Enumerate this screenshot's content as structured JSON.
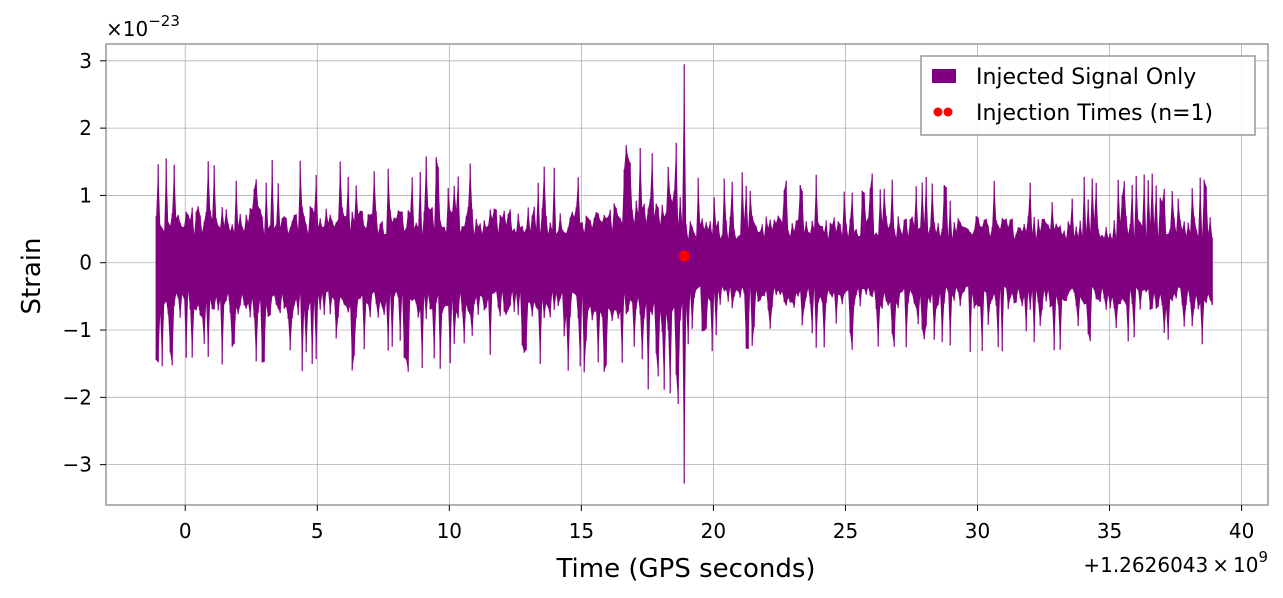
{
  "chart_data": {
    "type": "line",
    "xlabel": "Time (GPS seconds)",
    "ylabel": "Strain",
    "x_offset_label": "+1.2626043 × 10",
    "x_offset_exponent": "9",
    "y_multiplier_label": "×10",
    "y_multiplier_exponent": "−23",
    "xlim": [
      -3,
      41
    ],
    "ylim": [
      -3.6,
      3.25
    ],
    "x_ticks": [
      0,
      5,
      10,
      15,
      20,
      25,
      30,
      35,
      40
    ],
    "x_tick_labels": [
      "0",
      "5",
      "10",
      "15",
      "20",
      "25",
      "30",
      "35",
      "40"
    ],
    "y_ticks": [
      -3,
      -2,
      -1,
      0,
      1,
      2,
      3
    ],
    "y_tick_labels": [
      "−3",
      "−2",
      "−1",
      "0",
      "1",
      "2",
      "3"
    ],
    "grid": true,
    "legend_position": "top-right",
    "series": [
      {
        "name": "Injected Signal Only",
        "kind": "line",
        "color": "#800080",
        "x_range": [
          -1.1,
          38.9
        ],
        "envelope_peak_pre_injection": 1.2,
        "envelope_peak_post_injection": 1.0,
        "injection_peak_time": 18.9,
        "max_value": 2.95,
        "min_value": -3.28
      },
      {
        "name": "Injection Times (n=1)",
        "kind": "scatter",
        "color": "#ff0000",
        "x": [
          18.9
        ],
        "y": [
          0.1
        ]
      }
    ]
  }
}
